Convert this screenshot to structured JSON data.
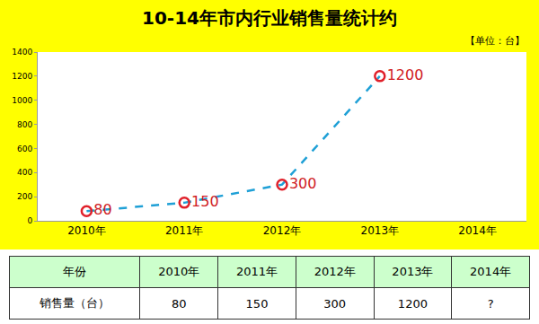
{
  "chart_data": {
    "type": "line",
    "title": "10-14年市内行业销售量统计约",
    "annotations": [
      "【单位：台】"
    ],
    "categories": [
      "2010年",
      "2011年",
      "2012年",
      "2013年",
      "2014年"
    ],
    "values": [
      80,
      150,
      300,
      1200,
      null
    ],
    "color": "#1fa0d6",
    "line_style": "dash",
    "marker": "circle-open",
    "ylim": [
      0,
      1400
    ],
    "yticks": [
      0,
      200,
      400,
      600,
      800,
      1000,
      1200,
      1400
    ],
    "grid": false,
    "data_labels": true
  },
  "table": {
    "rows": [
      [
        "年份",
        "2010年",
        "2011年",
        "2012年",
        "2013年",
        "2014年"
      ],
      [
        "销售量（台）",
        80,
        150,
        300,
        1200,
        "?"
      ]
    ]
  }
}
